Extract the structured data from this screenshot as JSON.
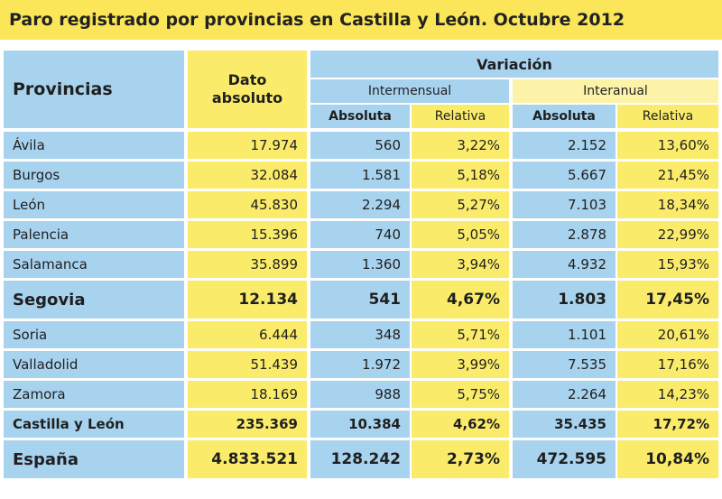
{
  "chart_data": {
    "type": "table",
    "title": "Paro registrado por provincias en Castilla y León. Octubre 2012",
    "headers": {
      "provincias": "Provincias",
      "dato_absoluto": "Dato absoluto",
      "variacion": "Variación",
      "intermensual": "Intermensual",
      "interanual": "Interanual",
      "absoluta": "Absoluta",
      "relativa": "Relativa"
    },
    "rows": [
      {
        "provincia": "Ávila",
        "dato": "17.974",
        "im_abs": "560",
        "im_rel": "3,22%",
        "ia_abs": "2.152",
        "ia_rel": "13,60%"
      },
      {
        "provincia": "Burgos",
        "dato": "32.084",
        "im_abs": "1.581",
        "im_rel": "5,18%",
        "ia_abs": "5.667",
        "ia_rel": "21,45%"
      },
      {
        "provincia": "León",
        "dato": "45.830",
        "im_abs": "2.294",
        "im_rel": "5,27%",
        "ia_abs": "7.103",
        "ia_rel": "18,34%"
      },
      {
        "provincia": "Palencia",
        "dato": "15.396",
        "im_abs": "740",
        "im_rel": "5,05%",
        "ia_abs": "2.878",
        "ia_rel": "22,99%"
      },
      {
        "provincia": "Salamanca",
        "dato": "35.899",
        "im_abs": "1.360",
        "im_rel": "3,94%",
        "ia_abs": "4.932",
        "ia_rel": "15,93%"
      },
      {
        "provincia": "Segovia",
        "dato": "12.134",
        "im_abs": "541",
        "im_rel": "4,67%",
        "ia_abs": "1.803",
        "ia_rel": "17,45%"
      },
      {
        "provincia": "Soria",
        "dato": "6.444",
        "im_abs": "348",
        "im_rel": "5,71%",
        "ia_abs": "1.101",
        "ia_rel": "20,61%"
      },
      {
        "provincia": "Valladolid",
        "dato": "51.439",
        "im_abs": "1.972",
        "im_rel": "3,99%",
        "ia_abs": "7.535",
        "ia_rel": "17,16%"
      },
      {
        "provincia": "Zamora",
        "dato": "18.169",
        "im_abs": "988",
        "im_rel": "5,75%",
        "ia_abs": "2.264",
        "ia_rel": "14,23%"
      },
      {
        "provincia": "Castilla y León",
        "dato": "235.369",
        "im_abs": "10.384",
        "im_rel": "4,62%",
        "ia_abs": "35.435",
        "ia_rel": "17,72%"
      },
      {
        "provincia": "España",
        "dato": "4.833.521",
        "im_abs": "128.242",
        "im_rel": "2,73%",
        "ia_abs": "472.595",
        "ia_rel": "10,84%"
      }
    ]
  },
  "colors": {
    "title_bg": "#fbe65a",
    "blue": "#a8d3ef",
    "yellow": "#faec6a",
    "pale_yellow": "#fcf3a8"
  }
}
